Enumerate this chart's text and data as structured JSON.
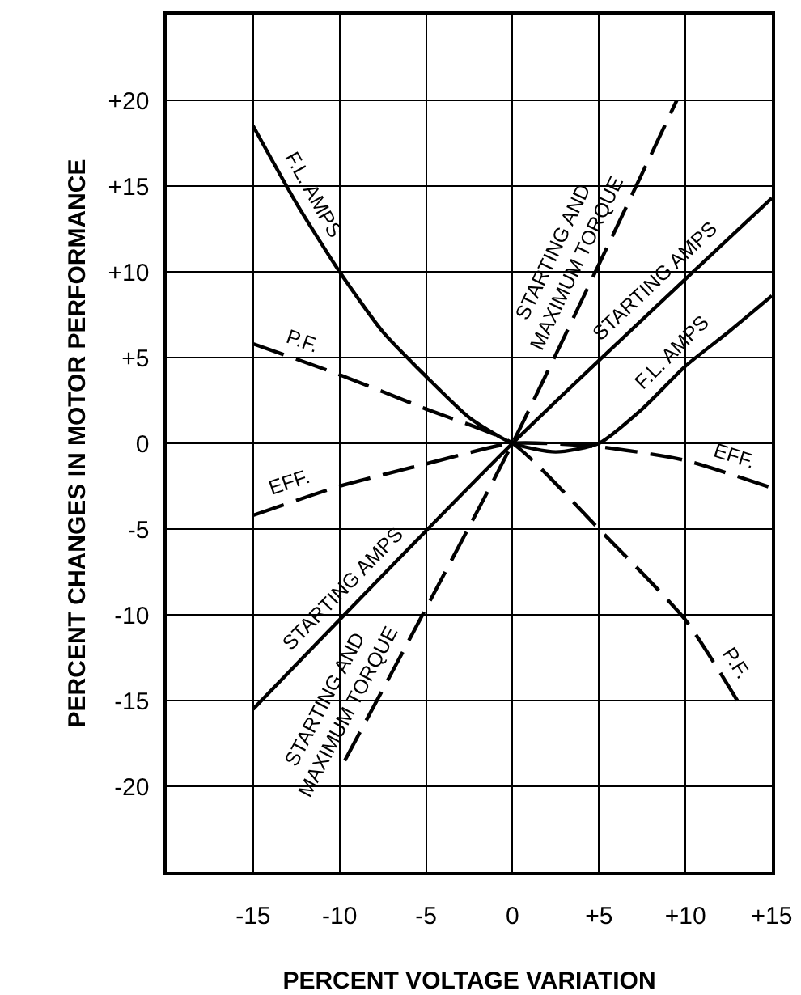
{
  "chart_data": {
    "type": "line",
    "xlabel": "PERCENT VOLTAGE VARIATION",
    "ylabel": "PERCENT CHANGES IN MOTOR PERFORMANCE",
    "xlim": [
      -20,
      15
    ],
    "ylim": [
      -25,
      25
    ],
    "xticks": [
      -15,
      -10,
      -5,
      0,
      {
        "value": 5,
        "label": "+5"
      },
      {
        "value": 10,
        "label": "+10"
      },
      {
        "value": 15,
        "label": "+15"
      }
    ],
    "yticks": [
      -20,
      -15,
      -10,
      -5,
      0,
      {
        "value": 5,
        "label": "+5"
      },
      {
        "value": 10,
        "label": "+10"
      },
      {
        "value": 15,
        "label": "+15"
      },
      {
        "value": 20,
        "label": "+20"
      }
    ],
    "grid": true,
    "marker": "none",
    "series": [
      {
        "color": "#000000",
        "line_style": "solid",
        "x": [
          -15,
          -12.5,
          -10,
          -7.5,
          -5,
          -2.5,
          0,
          2.5,
          5,
          7.5,
          10,
          12.5,
          15
        ],
        "values": [
          18.5,
          14,
          10,
          6.5,
          3.9,
          1.5,
          0,
          -0.5,
          0,
          2,
          4.5,
          6.5,
          8.6
        ]
      },
      {
        "color": "#000000",
        "line_style": "solid",
        "x": [
          -15,
          0,
          15
        ],
        "values": [
          -15.5,
          0,
          14.3
        ]
      },
      {
        "color": "#000000",
        "line_style": "dashed",
        "x": [
          -9.7,
          0,
          9.5
        ],
        "values": [
          -18.5,
          0,
          20
        ]
      },
      {
        "color": "#000000",
        "line_style": "dashed",
        "x": [
          -15,
          -10,
          -5,
          0,
          5,
          10,
          13
        ],
        "values": [
          5.8,
          4,
          2,
          0,
          -5,
          -10.3,
          -15
        ]
      },
      {
        "color": "#000000",
        "line_style": "dashed",
        "x": [
          -15,
          -10,
          -5,
          0,
          5,
          10,
          15
        ],
        "values": [
          -4.2,
          -2.5,
          -1.2,
          0,
          -0.2,
          -1,
          -2.6
        ]
      }
    ],
    "annotations": [
      {
        "text": "F.L. AMPS",
        "x": -12.5,
        "y": 14
      },
      {
        "text": "STARTING AND\nMAXIMUM TORQUE",
        "x": 4.75,
        "y": 10
      },
      {
        "text": "STARTING AMPS",
        "x": 9,
        "y": 8.58
      },
      {
        "text": "F.L. AMPS",
        "x": 10,
        "y": 4.5
      },
      {
        "text": "P.F.",
        "x": -12.5,
        "y": 4.9
      },
      {
        "text": "EFF.",
        "x": -12.5,
        "y": -3.35
      },
      {
        "text": "EFF.",
        "x": 12.5,
        "y": -1.8
      },
      {
        "text": "STARTING AMPS",
        "x": -9,
        "y": -9.3
      },
      {
        "text": "STARTING AND\nMAXIMUM TORQUE",
        "x": -8.5,
        "y": -16.21
      },
      {
        "text": "P.F.",
        "x": 12,
        "y": -13.43
      }
    ]
  }
}
